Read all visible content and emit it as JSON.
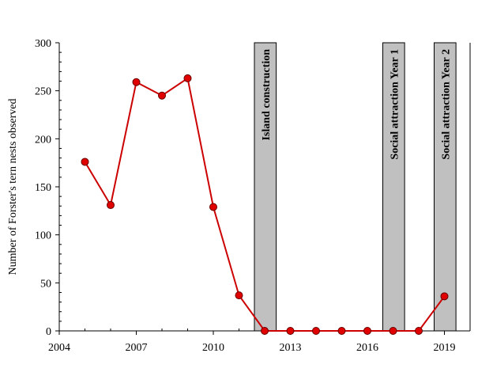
{
  "chart_data": {
    "type": "line",
    "title": "",
    "xlabel": "",
    "ylabel": "Number of Forster's tern nests observed",
    "xlim": [
      2004,
      2020
    ],
    "ylim": [
      0,
      300
    ],
    "xticks": [
      2004,
      2007,
      2010,
      2013,
      2016,
      2019
    ],
    "yticks": [
      0,
      50,
      100,
      150,
      200,
      250,
      300
    ],
    "grid": false,
    "legend": "none",
    "series_color": "#cc0000",
    "marker_color": "#e00000",
    "period_color": "#c0c0c0",
    "series": [
      {
        "x": [
          2005,
          2006,
          2007,
          2008,
          2009,
          2010,
          2011,
          2012,
          2013,
          2014,
          2015,
          2016,
          2017,
          2018,
          2019
        ],
        "values": [
          176,
          131,
          259,
          245,
          263,
          129,
          37,
          0,
          0,
          0,
          0,
          0,
          0,
          0,
          36
        ]
      }
    ],
    "periods": [
      {
        "label": "Island construction",
        "start": 2011.6,
        "end": 2012.45
      },
      {
        "label": "Social attraction Year 1",
        "start": 2016.6,
        "end": 2017.45
      },
      {
        "label": "Social attraction Year 2",
        "start": 2018.6,
        "end": 2019.45
      }
    ]
  }
}
